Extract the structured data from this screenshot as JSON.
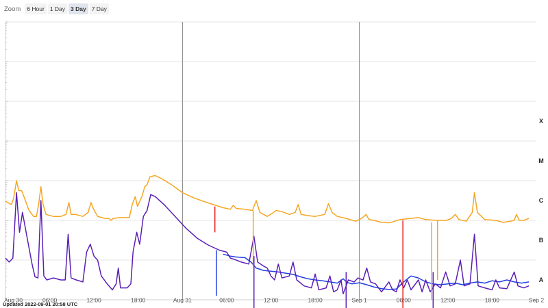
{
  "zoom": {
    "label": "Zoom",
    "buttons": [
      {
        "label": "6 Hour",
        "active": false
      },
      {
        "label": "1 Day",
        "active": false
      },
      {
        "label": "3 Day",
        "active": true
      },
      {
        "label": "7 Day",
        "active": false
      }
    ]
  },
  "updated": "Updated 2022-09-01 20:58 UTC",
  "chart_data": {
    "type": "line",
    "title": "",
    "xlabel": "",
    "ylabel": "",
    "x_range_hours": [
      0,
      72
    ],
    "x_ticks": [
      {
        "h": 0,
        "label": "Aug 30",
        "major": true
      },
      {
        "h": 6,
        "label": "06:00",
        "major": false
      },
      {
        "h": 12,
        "label": "12:00",
        "major": false
      },
      {
        "h": 18,
        "label": "18:00",
        "major": false
      },
      {
        "h": 24,
        "label": "Aug 31",
        "major": true
      },
      {
        "h": 30,
        "label": "06:00",
        "major": false
      },
      {
        "h": 36,
        "label": "12:00",
        "major": false
      },
      {
        "h": 42,
        "label": "18:00",
        "major": false
      },
      {
        "h": 48,
        "label": "Sep 1",
        "major": true
      },
      {
        "h": 54,
        "label": "06:00",
        "major": false
      },
      {
        "h": 60,
        "label": "12:00",
        "major": false
      },
      {
        "h": 66,
        "label": "18:00",
        "major": false
      },
      {
        "h": 72,
        "label": "Sep 2",
        "major": true
      }
    ],
    "y_scale": "log",
    "y_range": [
      -9,
      -2
    ],
    "y_class_labels": [
      {
        "log_y": -4.5,
        "label": "X"
      },
      {
        "log_y": -5.5,
        "label": "M"
      },
      {
        "log_y": -6.5,
        "label": "C"
      },
      {
        "log_y": -7.5,
        "label": "B"
      },
      {
        "log_y": -8.5,
        "label": "A"
      }
    ],
    "grid": true,
    "series": [
      {
        "color": "#f5a623",
        "points": [
          [
            0,
            -6.52
          ],
          [
            0.3,
            -6.55
          ],
          [
            0.8,
            -6.6
          ],
          [
            1.1,
            -6.45
          ],
          [
            1.5,
            -6.0
          ],
          [
            1.8,
            -6.25
          ],
          [
            2.2,
            -6.25
          ],
          [
            2.6,
            -6.45
          ],
          [
            3.2,
            -6.75
          ],
          [
            3.8,
            -6.9
          ],
          [
            4.2,
            -6.9
          ],
          [
            4.5,
            -6.6
          ],
          [
            4.8,
            -6.15
          ],
          [
            5.1,
            -6.6
          ],
          [
            5.5,
            -6.85
          ],
          [
            6.5,
            -6.9
          ],
          [
            7.5,
            -6.9
          ],
          [
            8.2,
            -6.85
          ],
          [
            8.6,
            -6.55
          ],
          [
            8.9,
            -6.85
          ],
          [
            9.5,
            -6.85
          ],
          [
            10.5,
            -6.9
          ],
          [
            11.2,
            -6.8
          ],
          [
            11.6,
            -6.55
          ],
          [
            11.9,
            -6.7
          ],
          [
            12.5,
            -6.9
          ],
          [
            13.5,
            -6.95
          ],
          [
            14.0,
            -6.95
          ],
          [
            14.3,
            -7.0
          ],
          [
            14.6,
            -6.95
          ],
          [
            15.5,
            -6.93
          ],
          [
            16.8,
            -6.93
          ],
          [
            17.2,
            -6.6
          ],
          [
            17.6,
            -6.4
          ],
          [
            17.9,
            -6.65
          ],
          [
            18.5,
            -6.4
          ],
          [
            18.9,
            -6.15
          ],
          [
            19.2,
            -6.1
          ],
          [
            19.6,
            -5.9
          ],
          [
            20.3,
            -5.87
          ],
          [
            21.2,
            -5.95
          ],
          [
            22.5,
            -6.1
          ],
          [
            24,
            -6.3
          ],
          [
            25.5,
            -6.43
          ],
          [
            27,
            -6.53
          ],
          [
            28.5,
            -6.62
          ],
          [
            29.5,
            -6.68
          ],
          [
            30.5,
            -6.72
          ],
          [
            30.9,
            -6.62
          ],
          [
            31.3,
            -6.7
          ],
          [
            32.5,
            -6.72
          ],
          [
            33.5,
            -6.75
          ],
          [
            34.0,
            -6.5
          ],
          [
            34.5,
            -6.8
          ],
          [
            35.5,
            -6.9
          ],
          [
            36.2,
            -6.82
          ],
          [
            36.7,
            -6.75
          ],
          [
            37.5,
            -6.78
          ],
          [
            38.5,
            -6.85
          ],
          [
            39.3,
            -6.8
          ],
          [
            39.7,
            -6.6
          ],
          [
            40.1,
            -6.85
          ],
          [
            41.0,
            -6.88
          ],
          [
            42.0,
            -6.9
          ],
          [
            43.3,
            -6.85
          ],
          [
            43.8,
            -6.58
          ],
          [
            44.3,
            -6.8
          ],
          [
            45.0,
            -6.9
          ],
          [
            46.2,
            -6.95
          ],
          [
            47.5,
            -7.02
          ],
          [
            48.0,
            -6.98
          ],
          [
            48.5,
            -6.92
          ],
          [
            48.9,
            -6.85
          ],
          [
            49.3,
            -6.98
          ],
          [
            50.0,
            -7.0
          ],
          [
            51.0,
            -7.05
          ],
          [
            52.0,
            -7.06
          ],
          [
            52.5,
            -7.04
          ],
          [
            53.5,
            -6.98
          ],
          [
            55.0,
            -6.95
          ],
          [
            56.0,
            -6.93
          ],
          [
            57.0,
            -6.98
          ],
          [
            58.5,
            -7.0
          ],
          [
            59.8,
            -7.0
          ],
          [
            60.5,
            -6.95
          ],
          [
            61.0,
            -6.85
          ],
          [
            61.5,
            -6.98
          ],
          [
            62.5,
            -7.02
          ],
          [
            63.3,
            -6.8
          ],
          [
            63.6,
            -6.3
          ],
          [
            64.0,
            -6.8
          ],
          [
            65.0,
            -6.98
          ],
          [
            66.5,
            -7.0
          ],
          [
            67.5,
            -7.05
          ],
          [
            68.5,
            -7.02
          ],
          [
            69.0,
            -7.0
          ],
          [
            69.3,
            -6.85
          ],
          [
            69.7,
            -7.0
          ],
          [
            70.3,
            -7.0
          ],
          [
            71.0,
            -6.95
          ]
        ]
      },
      {
        "color": "#1f3fe0",
        "points": [
          [
            29.5,
            -7.85
          ],
          [
            30.5,
            -7.9
          ],
          [
            31.2,
            -7.92
          ],
          [
            32.5,
            -7.94
          ],
          [
            33.3,
            -8.05
          ],
          [
            34.0,
            -8.2
          ],
          [
            35.0,
            -8.26
          ],
          [
            36.0,
            -8.28
          ],
          [
            37.0,
            -8.3
          ],
          [
            38.0,
            -8.33
          ],
          [
            39.0,
            -8.36
          ],
          [
            40.0,
            -8.42
          ],
          [
            41.0,
            -8.47
          ],
          [
            42.0,
            -8.5
          ],
          [
            43.0,
            -8.52
          ],
          [
            44.0,
            -8.55
          ],
          [
            45.0,
            -8.58
          ],
          [
            45.8,
            -8.47
          ],
          [
            46.3,
            -8.56
          ],
          [
            47.0,
            -8.6
          ],
          [
            48.0,
            -8.57
          ],
          [
            49.0,
            -8.62
          ],
          [
            50.0,
            -8.68
          ],
          [
            51.0,
            -8.72
          ],
          [
            52.0,
            -8.74
          ],
          [
            53.0,
            -8.73
          ],
          [
            54.0,
            -8.55
          ],
          [
            55.0,
            -8.4
          ],
          [
            56.0,
            -8.45
          ],
          [
            57.0,
            -8.55
          ],
          [
            58.0,
            -8.6
          ],
          [
            59.0,
            -8.62
          ],
          [
            60.0,
            -8.6
          ],
          [
            61.0,
            -8.58
          ],
          [
            62.0,
            -8.62
          ],
          [
            63.0,
            -8.58
          ],
          [
            64.0,
            -8.55
          ],
          [
            65.0,
            -8.58
          ],
          [
            66.0,
            -8.52
          ],
          [
            67.0,
            -8.55
          ],
          [
            68.0,
            -8.5
          ],
          [
            69.0,
            -8.55
          ],
          [
            70.0,
            -8.58
          ],
          [
            71.0,
            -8.55
          ]
        ]
      },
      {
        "color": "#5a1fb5",
        "points": [
          [
            0,
            -7.95
          ],
          [
            0.5,
            -8.05
          ],
          [
            1.0,
            -7.95
          ],
          [
            1.5,
            -6.3
          ],
          [
            1.9,
            -7.3
          ],
          [
            2.3,
            -6.8
          ],
          [
            3.0,
            -7.5
          ],
          [
            3.6,
            -8.1
          ],
          [
            4.0,
            -8.42
          ],
          [
            4.4,
            -8.45
          ],
          [
            4.8,
            -6.5
          ],
          [
            5.2,
            -8.4
          ],
          [
            5.6,
            -8.5
          ],
          [
            6.5,
            -8.45
          ],
          [
            7.5,
            -8.5
          ],
          [
            8.1,
            -8.5
          ],
          [
            8.5,
            -7.35
          ],
          [
            8.9,
            -8.45
          ],
          [
            9.6,
            -8.5
          ],
          [
            10.5,
            -8.55
          ],
          [
            11.0,
            -7.8
          ],
          [
            11.5,
            -7.6
          ],
          [
            12.0,
            -7.9
          ],
          [
            12.5,
            -8.0
          ],
          [
            13.0,
            -8.4
          ],
          [
            13.8,
            -8.6
          ],
          [
            14.5,
            -8.75
          ],
          [
            15.0,
            -8.6
          ],
          [
            15.3,
            -8.2
          ],
          [
            15.6,
            -8.7
          ],
          [
            16.5,
            -8.7
          ],
          [
            17.0,
            -8.6
          ],
          [
            17.3,
            -7.8
          ],
          [
            17.8,
            -7.3
          ],
          [
            18.2,
            -7.6
          ],
          [
            18.7,
            -6.9
          ],
          [
            19.2,
            -6.75
          ],
          [
            19.7,
            -6.35
          ],
          [
            20.3,
            -6.4
          ],
          [
            21.5,
            -6.6
          ],
          [
            23.0,
            -6.9
          ],
          [
            24.5,
            -7.2
          ],
          [
            26.0,
            -7.45
          ],
          [
            27.5,
            -7.62
          ],
          [
            29.0,
            -7.75
          ],
          [
            30.0,
            -7.8
          ],
          [
            30.5,
            -7.95
          ],
          [
            31.0,
            -7.98
          ],
          [
            32.0,
            -8.05
          ],
          [
            33.0,
            -8.1
          ],
          [
            33.7,
            -7.4
          ],
          [
            34.2,
            -8.05
          ],
          [
            35.0,
            -8.15
          ],
          [
            35.5,
            -8.2
          ],
          [
            36.0,
            -8.4
          ],
          [
            36.5,
            -8.5
          ],
          [
            37.0,
            -8.1
          ],
          [
            37.5,
            -8.45
          ],
          [
            38.5,
            -8.4
          ],
          [
            39.0,
            -8.05
          ],
          [
            39.5,
            -8.5
          ],
          [
            40.5,
            -8.65
          ],
          [
            41.5,
            -8.7
          ],
          [
            42.0,
            -8.35
          ],
          [
            42.5,
            -8.75
          ],
          [
            43.5,
            -8.7
          ],
          [
            44.0,
            -8.4
          ],
          [
            44.5,
            -8.8
          ],
          [
            45.0,
            -8.75
          ],
          [
            45.5,
            -8.5
          ],
          [
            45.8,
            -8.85
          ],
          [
            46.5,
            -8.5
          ],
          [
            47.3,
            -8.55
          ],
          [
            47.8,
            -8.45
          ],
          [
            48.5,
            -8.5
          ],
          [
            49.0,
            -8.2
          ],
          [
            49.5,
            -8.55
          ],
          [
            50.2,
            -8.6
          ],
          [
            51.0,
            -8.8
          ],
          [
            52.0,
            -8.55
          ],
          [
            52.5,
            -8.75
          ],
          [
            53.0,
            -8.8
          ],
          [
            53.5,
            -8.5
          ],
          [
            54.0,
            -8.7
          ],
          [
            54.5,
            -8.5
          ],
          [
            55.0,
            -8.75
          ],
          [
            56.0,
            -8.5
          ],
          [
            56.5,
            -8.8
          ],
          [
            57.0,
            -8.5
          ],
          [
            57.6,
            -8.8
          ],
          [
            58.3,
            -8.6
          ],
          [
            59.0,
            -8.7
          ],
          [
            59.7,
            -8.3
          ],
          [
            60.3,
            -8.65
          ],
          [
            61.0,
            -8.6
          ],
          [
            61.7,
            -8.0
          ],
          [
            62.2,
            -8.65
          ],
          [
            63.0,
            -8.6
          ],
          [
            63.6,
            -7.35
          ],
          [
            64.1,
            -8.65
          ],
          [
            65.0,
            -8.7
          ],
          [
            66.0,
            -8.75
          ],
          [
            66.5,
            -8.5
          ],
          [
            67.0,
            -8.7
          ],
          [
            68.0,
            -8.72
          ],
          [
            69.0,
            -8.3
          ],
          [
            69.5,
            -8.65
          ],
          [
            70.3,
            -8.7
          ],
          [
            71.0,
            -8.65
          ]
        ]
      }
    ],
    "spikes": [
      {
        "h": 28.4,
        "color": "#e8201b",
        "top": -6.65,
        "bottom": -7.3
      },
      {
        "h": 28.6,
        "color": "#1f3fe0",
        "top": -7.75,
        "bottom": -8.9
      },
      {
        "h": 33.6,
        "color": "#f5a623",
        "top": -6.75,
        "bottom": -8.15
      },
      {
        "h": 33.7,
        "color": "#5a1fb5",
        "top": -7.9,
        "bottom": -9.3
      },
      {
        "h": 46.2,
        "color": "#5a1fb5",
        "top": -8.3,
        "bottom": -9.6
      },
      {
        "h": 53.9,
        "color": "#e8201b",
        "top": -7.0,
        "bottom": -9.4
      },
      {
        "h": 57.8,
        "color": "#f5a623",
        "top": -7.05,
        "bottom": -9.0
      },
      {
        "h": 58.0,
        "color": "#5a1fb5",
        "top": -8.3,
        "bottom": -9.4
      },
      {
        "h": 58.6,
        "color": "#f5a623",
        "top": -7.0,
        "bottom": -8.5
      }
    ]
  }
}
